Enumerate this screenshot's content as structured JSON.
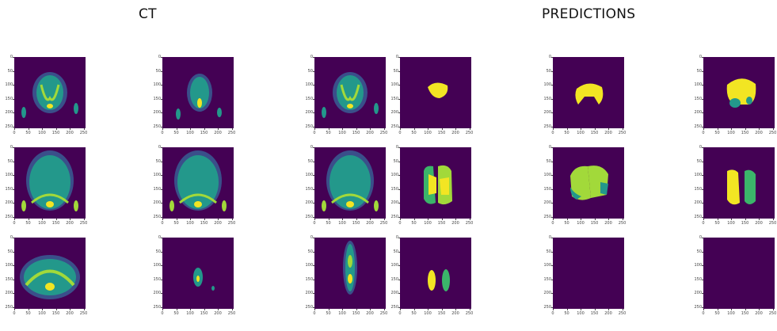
{
  "headers": {
    "ct": "CT",
    "predictions": "PREDICTIONS"
  },
  "axes": {
    "y_ticks": [
      "0",
      "50",
      "100",
      "150",
      "200",
      "250"
    ],
    "x_ticks": [
      "0",
      "50",
      "100",
      "150",
      "200",
      "250"
    ]
  },
  "colors": {
    "background": "#440154",
    "teal": "#23988b",
    "green": "#3bb56a",
    "lime": "#a2d93a",
    "yellow": "#f2e523"
  },
  "panels": [
    {
      "id": "ct-1",
      "kind": "ct-abdomen"
    },
    {
      "id": "ct-2",
      "kind": "ct-abdomen-small"
    },
    {
      "id": "ct-3",
      "kind": "ct-abdomen"
    },
    {
      "id": "gt-1",
      "kind": "mask-yellow-small"
    },
    {
      "id": "pred-1a",
      "kind": "mask-yellow"
    },
    {
      "id": "pred-1b",
      "kind": "mask-yellow-teal"
    },
    {
      "id": "ct-4",
      "kind": "ct-chest"
    },
    {
      "id": "ct-5",
      "kind": "ct-chest"
    },
    {
      "id": "ct-6",
      "kind": "ct-chest"
    },
    {
      "id": "gt-2",
      "kind": "mask-lungs"
    },
    {
      "id": "pred-2a",
      "kind": "mask-lungs-lime"
    },
    {
      "id": "pred-2b",
      "kind": "mask-lungs-split"
    },
    {
      "id": "ct-7",
      "kind": "ct-shoulder"
    },
    {
      "id": "ct-8",
      "kind": "ct-small"
    },
    {
      "id": "ct-9",
      "kind": "ct-neck"
    },
    {
      "id": "gt-3",
      "kind": "mask-two-lobes"
    },
    {
      "id": "pred-3a",
      "kind": "mask-empty"
    },
    {
      "id": "pred-3b",
      "kind": "mask-empty"
    }
  ]
}
